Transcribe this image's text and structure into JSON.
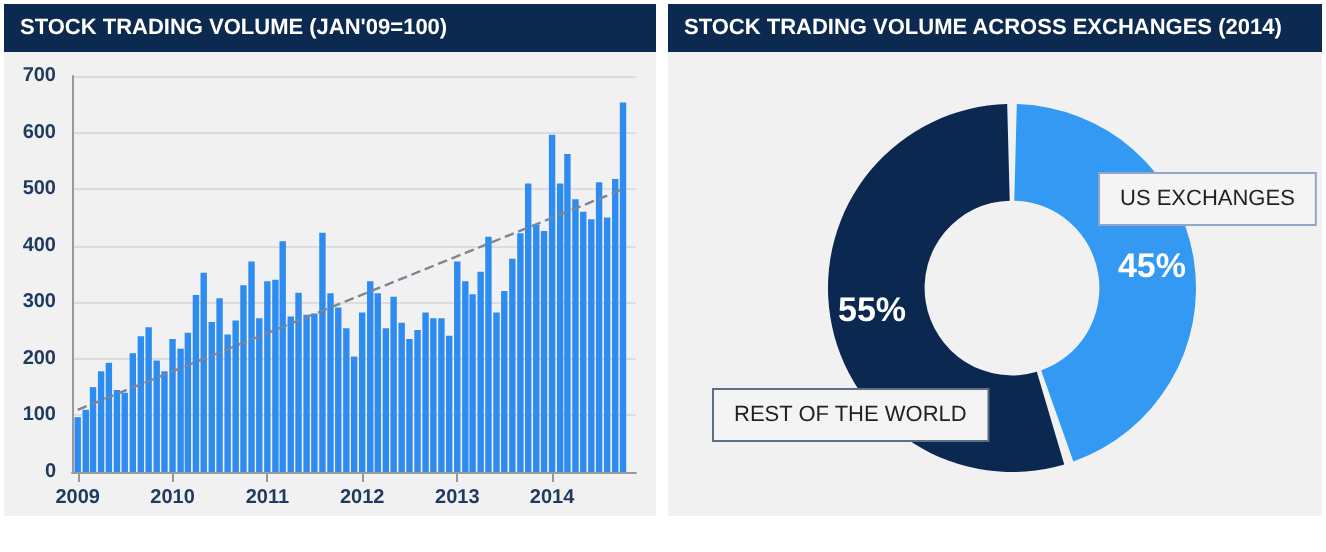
{
  "chart_data": [
    {
      "type": "bar",
      "title": "STOCK TRADING VOLUME (JAN'09=100)",
      "x": [
        "2009-01",
        "2009-02",
        "2009-03",
        "2009-04",
        "2009-05",
        "2009-06",
        "2009-07",
        "2009-08",
        "2009-09",
        "2009-10",
        "2009-11",
        "2009-12",
        "2010-01",
        "2010-02",
        "2010-03",
        "2010-04",
        "2010-05",
        "2010-06",
        "2010-07",
        "2010-08",
        "2010-09",
        "2010-10",
        "2010-11",
        "2010-12",
        "2011-01",
        "2011-02",
        "2011-03",
        "2011-04",
        "2011-05",
        "2011-06",
        "2011-07",
        "2011-08",
        "2011-09",
        "2011-10",
        "2011-11",
        "2011-12",
        "2012-01",
        "2012-02",
        "2012-03",
        "2012-04",
        "2012-05",
        "2012-06",
        "2012-07",
        "2012-08",
        "2012-09",
        "2012-10",
        "2012-11",
        "2012-12",
        "2013-01",
        "2013-02",
        "2013-03",
        "2013-04",
        "2013-05",
        "2013-06",
        "2013-07",
        "2013-08",
        "2013-09",
        "2013-10",
        "2013-11",
        "2013-12",
        "2014-01",
        "2014-02",
        "2014-03",
        "2014-04",
        "2014-05",
        "2014-06",
        "2014-07",
        "2014-08",
        "2014-09",
        "2014-10"
      ],
      "xlim": [
        "2008-12-10",
        "2014-11-20"
      ],
      "xticks": [
        {
          "value": "2009-01",
          "label": "2009"
        },
        {
          "value": "2010-01",
          "label": "2010"
        },
        {
          "value": "2011-01",
          "label": "2011"
        },
        {
          "value": "2012-01",
          "label": "2012"
        },
        {
          "value": "2013-01",
          "label": "2013"
        },
        {
          "value": "2014-01",
          "label": "2014"
        }
      ],
      "ylim": [
        0,
        700
      ],
      "yticks": [
        0,
        100,
        200,
        300,
        400,
        500,
        600,
        700
      ],
      "grid": "y",
      "series": [
        {
          "color": "#2e8bef",
          "values": [
            97,
            110,
            150,
            178,
            193,
            145,
            140,
            210,
            240,
            256,
            197,
            178,
            235,
            218,
            246,
            313,
            352,
            265,
            307,
            243,
            268,
            330,
            372,
            272,
            337,
            340,
            408,
            275,
            317,
            278,
            280,
            423,
            316,
            291,
            254,
            204,
            282,
            337,
            316,
            254,
            310,
            264,
            235,
            251,
            282,
            272,
            272,
            241,
            372,
            337,
            314,
            354,
            416,
            282,
            320,
            377,
            422,
            510,
            437,
            426,
            596,
            510,
            562,
            482,
            460,
            447,
            512,
            450,
            518,
            653
          ]
        },
        {
          "type": "line",
          "x": [
            "2009-01",
            "2014-10"
          ],
          "values": [
            110,
            500
          ],
          "color": "#7a8694",
          "line_style": "dashed",
          "marker": "none"
        }
      ]
    },
    {
      "type": "donut",
      "title": "STOCK TRADING VOLUME ACROSS EXCHANGES (2014)",
      "categories": [
        "US EXCHANGES",
        "REST OF THE WORLD"
      ],
      "values": [
        45,
        55
      ],
      "colors": [
        "#3399f3",
        "#0a2850"
      ],
      "value_labels": [
        "45%",
        "55%"
      ]
    }
  ]
}
